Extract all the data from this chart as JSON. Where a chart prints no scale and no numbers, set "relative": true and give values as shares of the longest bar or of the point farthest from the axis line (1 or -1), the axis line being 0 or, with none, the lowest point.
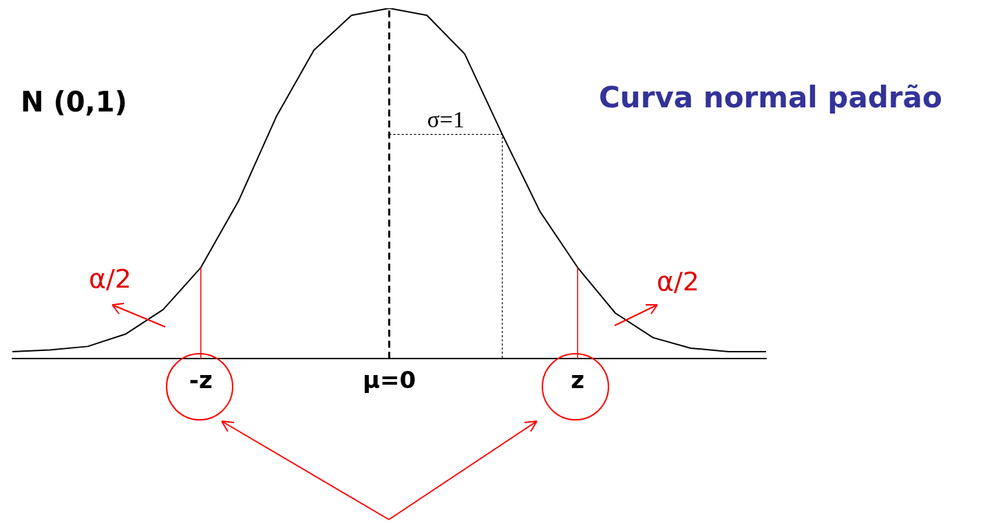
{
  "chart_data": {
    "type": "line",
    "title": "Curva normal padrão",
    "relative": true,
    "categories": [
      null,
      null,
      null,
      null,
      null,
      "-z",
      null,
      null,
      null,
      null,
      "μ=0",
      null,
      null,
      null,
      null,
      "z",
      null,
      null,
      null,
      null,
      null
    ],
    "series": [
      {
        "color": "#000000",
        "values": [
          0.02,
          0.025,
          0.035,
          0.07,
          0.14,
          0.26,
          0.45,
          0.69,
          0.88,
          0.98,
          1,
          0.98,
          0.87,
          0.64,
          0.42,
          0.26,
          0.13,
          0.06,
          0.03,
          0.02,
          0.02
        ]
      }
    ],
    "ref_lines": [
      {
        "axis": "x",
        "value": "μ=0",
        "color": "#000000",
        "line_style": "dashed"
      },
      {
        "axis": "x",
        "value": "-z",
        "color": "#ff0000",
        "line_style": "solid"
      },
      {
        "axis": "x",
        "value": "z",
        "color": "#ff0000",
        "line_style": "solid"
      },
      {
        "axis": "y",
        "value": 0.64,
        "label": "σ=1",
        "color": "#000000",
        "line_style": "dotted"
      }
    ],
    "annotations": [
      "N (0,1)",
      "α/2",
      "α/2"
    ],
    "grid": false,
    "legend": false,
    "marker": "none",
    "line_style": "solid"
  }
}
